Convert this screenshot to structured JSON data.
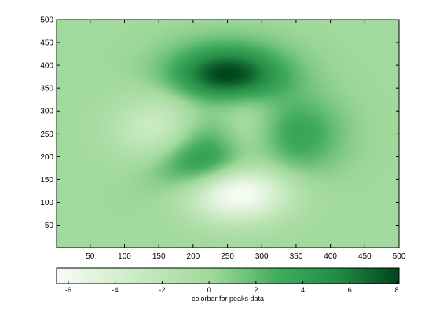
{
  "chart_data": [
    {
      "type": "heatmap",
      "title": "",
      "xlabel": "",
      "ylabel": "",
      "xlim": [
        1,
        500
      ],
      "ylim": [
        1,
        500
      ],
      "x_ticks": [
        50,
        100,
        150,
        200,
        250,
        300,
        350,
        400,
        450,
        500
      ],
      "y_ticks": [
        50,
        100,
        150,
        200,
        250,
        300,
        350,
        400,
        450,
        500
      ],
      "colormap": "Greens (white to dark green)",
      "color_range": [
        -6.5,
        8.1
      ],
      "grid": false,
      "features": [
        {
          "kind": "maximum",
          "x": 255,
          "y": 380,
          "value": 8.1
        },
        {
          "kind": "local maximum",
          "x": 385,
          "y": 250,
          "value": 3.8
        },
        {
          "kind": "local maximum",
          "x": 200,
          "y": 200,
          "value": 3.2
        },
        {
          "kind": "minimum",
          "x": 270,
          "y": 110,
          "value": -6.5
        },
        {
          "kind": "local minimum",
          "x": 110,
          "y": 270,
          "value": -3.1
        }
      ]
    },
    {
      "type": "colorbar",
      "label": "colorbar for peaks data",
      "orientation": "horizontal",
      "range": [
        -6.5,
        8.1
      ],
      "ticks": [
        -6,
        -4,
        -2,
        0,
        2,
        4,
        6,
        8
      ]
    }
  ]
}
